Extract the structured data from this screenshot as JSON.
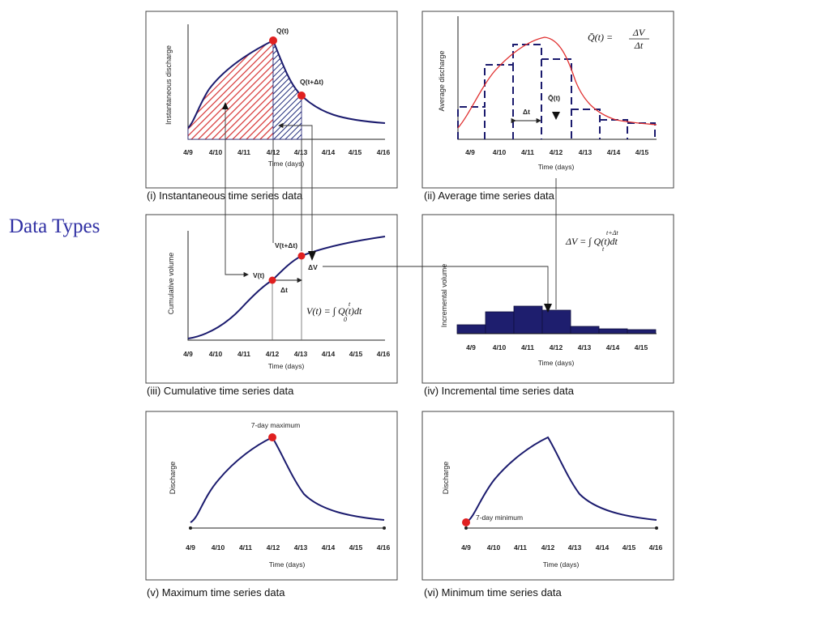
{
  "slide": {
    "title": "Data Types"
  },
  "time_ticks": [
    "4/9",
    "4/10",
    "4/11",
    "4/12",
    "4/13",
    "4/14",
    "4/15",
    "4/16"
  ],
  "time_ticks_short": [
    "4/9",
    "4/10",
    "4/11",
    "4/12",
    "4/13",
    "4/14",
    "4/15"
  ],
  "x_label": "Time (days)",
  "panels": {
    "instantaneous": {
      "caption": "(i) Instantaneous time series data",
      "ylabel": "Instantaneous discharge",
      "point_q": "Q(t)",
      "point_q_dt": "Q(t+Δt)"
    },
    "average": {
      "caption": "(ii) Average time series data",
      "ylabel": "Average discharge",
      "dt_label": "Δt",
      "qbar_label": "Q̄(t)",
      "formula_lhs": "Q̄(t) =",
      "formula_num": "ΔV",
      "formula_den": "Δt"
    },
    "cumulative": {
      "caption": "(iii) Cumulative time series data",
      "ylabel": "Cumulative volume",
      "point_v": "V(t)",
      "point_v_dt": "V(t+Δt)",
      "dv_label": "ΔV",
      "dt_label": "Δt",
      "formula": "V(t) = ∫ Q(t)dt",
      "formula_upper": "t",
      "formula_lower": "0"
    },
    "incremental": {
      "caption": "(iv) Incremental time series data",
      "ylabel": "Incremental volume",
      "formula": "ΔV = ∫ Q(t)dt",
      "formula_upper": "t+Δt",
      "formula_lower": "t"
    },
    "maximum": {
      "caption": "(v) Maximum time series data",
      "ylabel": "Discharge",
      "marker_label": "7-day maximum"
    },
    "minimum": {
      "caption": "(vi) Minimum time series data",
      "ylabel": "Discharge",
      "marker_label": "7-day minimum"
    }
  },
  "colors": {
    "curve": "#1b1b6e",
    "point": "#e02020",
    "hatch_red": "#d63030",
    "hatch_blue": "#1e2a7a",
    "avg_line": "#e03030",
    "title": "#2f2fa3"
  }
}
